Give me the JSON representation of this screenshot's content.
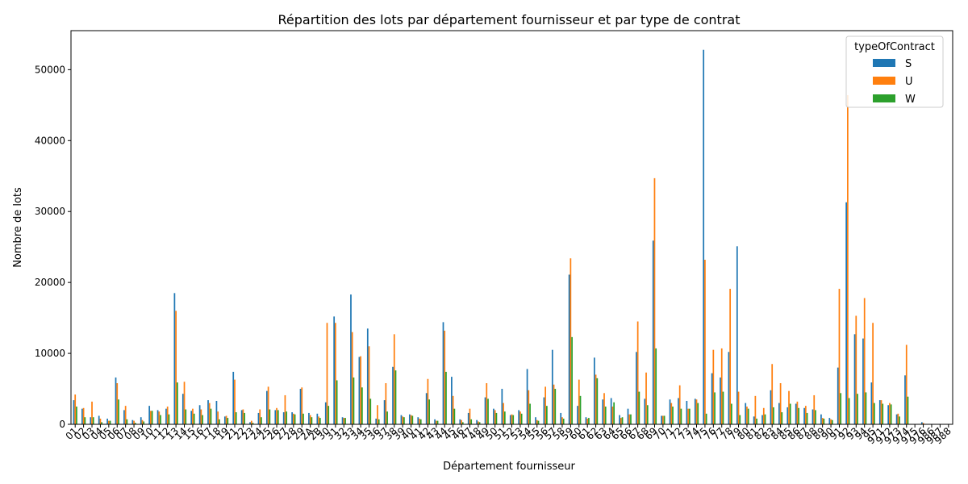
{
  "chart_data": {
    "type": "bar",
    "title": "Répartition des lots par département fournisseur et par type de contrat",
    "xlabel": "Département fournisseur",
    "ylabel": "Nombre de lots",
    "ylim": [
      0,
      55500
    ],
    "yticks": [
      0,
      10000,
      20000,
      30000,
      40000,
      50000
    ],
    "legend": {
      "title": "typeOfContract",
      "placement": "top-right"
    },
    "grid": false,
    "categories": [
      "01",
      "02",
      "03",
      "04",
      "05",
      "06",
      "07",
      "08",
      "09",
      "10",
      "11",
      "12",
      "13",
      "14",
      "15",
      "16",
      "17",
      "18",
      "19",
      "21",
      "22",
      "23",
      "24",
      "25",
      "26",
      "27",
      "28",
      "29",
      "2A",
      "2B",
      "30",
      "31",
      "32",
      "33",
      "34",
      "35",
      "36",
      "37",
      "38",
      "39",
      "40",
      "41",
      "42",
      "43",
      "44",
      "45",
      "46",
      "47",
      "48",
      "49",
      "50",
      "51",
      "52",
      "53",
      "54",
      "55",
      "56",
      "57",
      "58",
      "59",
      "60",
      "61",
      "62",
      "63",
      "64",
      "65",
      "66",
      "67",
      "68",
      "69",
      "70",
      "71",
      "72",
      "73",
      "74",
      "75",
      "76",
      "77",
      "78",
      "79",
      "80",
      "81",
      "82",
      "83",
      "84",
      "85",
      "86",
      "87",
      "88",
      "89",
      "90",
      "91",
      "92",
      "93",
      "94",
      "95",
      "971",
      "972",
      "973",
      "974",
      "975",
      "976",
      "986",
      "987",
      "988"
    ],
    "series": [
      {
        "name": "S",
        "color": "#1f77b4",
        "values": [
          3400,
          2200,
          1000,
          1200,
          800,
          6600,
          2000,
          600,
          1000,
          2600,
          2000,
          2200,
          18500,
          4300,
          1900,
          2700,
          3400,
          3300,
          1100,
          7400,
          2000,
          300,
          1600,
          4700,
          2000,
          1700,
          1700,
          5000,
          1600,
          1500,
          3100,
          15200,
          1000,
          18300,
          9500,
          13500,
          800,
          3400,
          8100,
          1300,
          1400,
          1000,
          4400,
          700,
          14400,
          6700,
          700,
          1600,
          600,
          3800,
          2200,
          5000,
          1300,
          2000,
          7800,
          1000,
          3800,
          10500,
          1600,
          21100,
          2600,
          1000,
          9400,
          3500,
          3700,
          1300,
          2200,
          10200,
          3600,
          25900,
          1200,
          3500,
          3700,
          3300,
          3600,
          52800,
          7200,
          6600,
          10200,
          25100,
          3000,
          1100,
          1300,
          4800,
          3000,
          2400,
          2900,
          2300,
          2100,
          1400,
          900,
          8000,
          31300,
          12700,
          12100,
          5900,
          3400,
          2700,
          1400,
          6900,
          0,
          300,
          0,
          0,
          0
        ]
      },
      {
        "name": "U",
        "color": "#ff7f0e",
        "values": [
          4200,
          2300,
          3200,
          800,
          500,
          5800,
          2600,
          500,
          600,
          1900,
          1800,
          2500,
          16000,
          6000,
          2200,
          2100,
          3000,
          1800,
          1200,
          6300,
          2100,
          500,
          2100,
          5300,
          2300,
          4100,
          1500,
          5200,
          1300,
          1100,
          14300,
          14300,
          900,
          13000,
          9600,
          11000,
          2700,
          5800,
          12700,
          1100,
          1300,
          800,
          6400,
          500,
          13200,
          4000,
          600,
          2200,
          400,
          5800,
          2000,
          3000,
          1400,
          1800,
          4800,
          600,
          5300,
          5600,
          1000,
          23400,
          6300,
          800,
          7000,
          4400,
          2500,
          900,
          1400,
          14500,
          7300,
          34700,
          1200,
          3000,
          5500,
          2200,
          3500,
          23200,
          10500,
          10700,
          19100,
          4600,
          2500,
          4000,
          2300,
          8500,
          5800,
          4700,
          3200,
          2600,
          4100,
          900,
          700,
          19100,
          46400,
          15300,
          17800,
          14300,
          3400,
          3000,
          1500,
          11200,
          0,
          200,
          0,
          0,
          0
        ]
      },
      {
        "name": "W",
        "color": "#2ca02c",
        "values": [
          2500,
          1000,
          1000,
          300,
          500,
          3500,
          700,
          200,
          400,
          1900,
          1300,
          1400,
          5900,
          2100,
          1500,
          1300,
          2200,
          700,
          900,
          1700,
          1600,
          200,
          1000,
          2100,
          2000,
          1800,
          1400,
          1500,
          1000,
          900,
          2600,
          6200,
          900,
          6600,
          5200,
          3600,
          700,
          1800,
          7600,
          1000,
          1200,
          700,
          3500,
          500,
          7400,
          2200,
          300,
          700,
          300,
          3600,
          1600,
          1800,
          1300,
          1500,
          2900,
          500,
          2600,
          5000,
          800,
          12300,
          4000,
          900,
          6500,
          2500,
          3100,
          1000,
          1400,
          4600,
          2700,
          10700,
          1200,
          2500,
          2200,
          2200,
          3000,
          1500,
          4500,
          4600,
          2900,
          1300,
          2200,
          800,
          1400,
          2400,
          1700,
          2900,
          2300,
          1600,
          2000,
          800,
          600,
          4400,
          3700,
          4300,
          4500,
          3000,
          2900,
          2800,
          1100,
          3900,
          0,
          0,
          0,
          0,
          0
        ]
      }
    ]
  }
}
